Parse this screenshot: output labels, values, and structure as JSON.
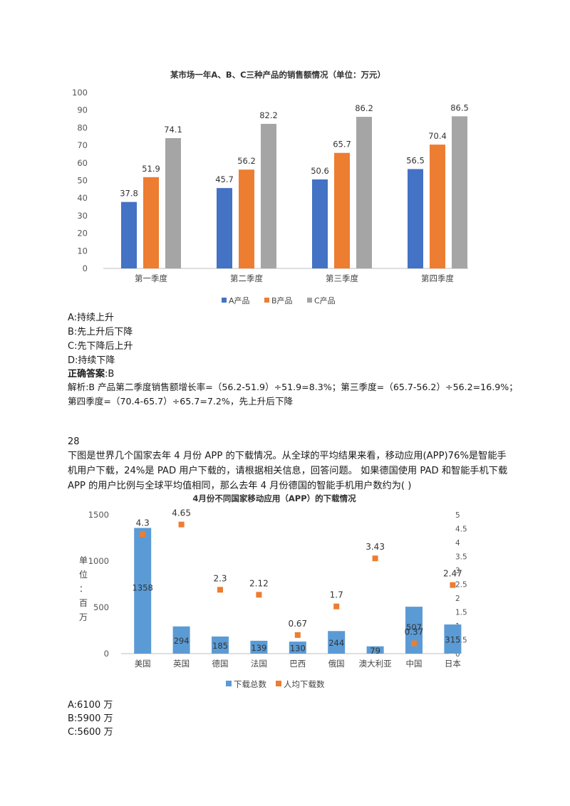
{
  "chart_data": [
    {
      "type": "bar",
      "title": "某市场一年A、B、C三种产品的销售额情况（单位：万元）",
      "categories": [
        "第一季度",
        "第二季度",
        "第三季度",
        "第四季度"
      ],
      "series": [
        {
          "name": "A产品",
          "values": [
            37.8,
            45.7,
            50.6,
            56.5
          ],
          "color": "#4472c4"
        },
        {
          "name": "B产品",
          "values": [
            51.9,
            56.2,
            65.7,
            70.4
          ],
          "color": "#ed7d31"
        },
        {
          "name": "C产品",
          "values": [
            74.1,
            82.2,
            86.2,
            86.5
          ],
          "color": "#a5a5a5"
        }
      ],
      "ylim": [
        0,
        100
      ],
      "yticks": [
        "0",
        "10",
        "20",
        "30",
        "40",
        "50",
        "60",
        "70",
        "80",
        "90",
        "100"
      ],
      "legend_position": "bottom",
      "grid": false
    },
    {
      "type": "bar+scatter",
      "title": "4月份不同国家移动应用（APP）的下载情况",
      "ylabel": "单位：百万",
      "categories": [
        "美国",
        "英国",
        "德国",
        "法国",
        "巴西",
        "俄国",
        "澳大利亚",
        "中国",
        "日本"
      ],
      "series": [
        {
          "name": "下载总数",
          "values": [
            1358,
            294,
            185,
            139,
            130,
            244,
            79,
            507,
            315
          ],
          "axis": "left",
          "color": "#5b9bd5"
        },
        {
          "name": "人均下载数",
          "values": [
            4.3,
            4.65,
            2.3,
            2.12,
            0.67,
            1.7,
            3.43,
            0.37,
            2.47
          ],
          "axis": "right",
          "color": "#ed7d31"
        }
      ],
      "ylim_left": [
        0,
        1500
      ],
      "ylim_right": [
        0,
        5
      ],
      "yticks_left": [
        "0",
        "500",
        "1000",
        "1500"
      ],
      "yticks_right": [
        "0",
        "0.5",
        "1",
        "1.5",
        "2",
        "2.5",
        "3",
        "3.5",
        "4",
        "4.5",
        "5"
      ],
      "legend_position": "bottom",
      "grid": false
    }
  ],
  "ylabel_chars": [
    "单",
    "位",
    "：",
    "百",
    "万"
  ],
  "q1": {
    "options": [
      "A:持续上升",
      "B:先上升后下降",
      "C:先下降后上升",
      "D:持续下降"
    ],
    "answer_label": "正确答案",
    "answer_value": ":B",
    "explanation_1": "解析:B 产品第二季度销售额增长率=（56.2-51.9）÷51.9=8.3%；第三季度=（65.7-56.2）÷56.2=16.9%；",
    "explanation_2": "第四季度=（70.4-65.7）÷65.7=7.2%，先上升后下降"
  },
  "q2": {
    "number": "28",
    "text": "下图是世界几个国家去年 4 月份 APP 的下载情况。从全球的平均结果来看，移动应用(APP)76%是智能手机用户下载，24%是 PAD 用户下载的，请根据相关信息，回答问题。 如果德国使用 PAD 和智能手机下载 APP 的用户比例与全球平均值相同，那么去年 4 月份德国的智能手机用户数约为(   )",
    "options": [
      "A:6100 万",
      "B:5900 万",
      "C:5600 万"
    ]
  }
}
